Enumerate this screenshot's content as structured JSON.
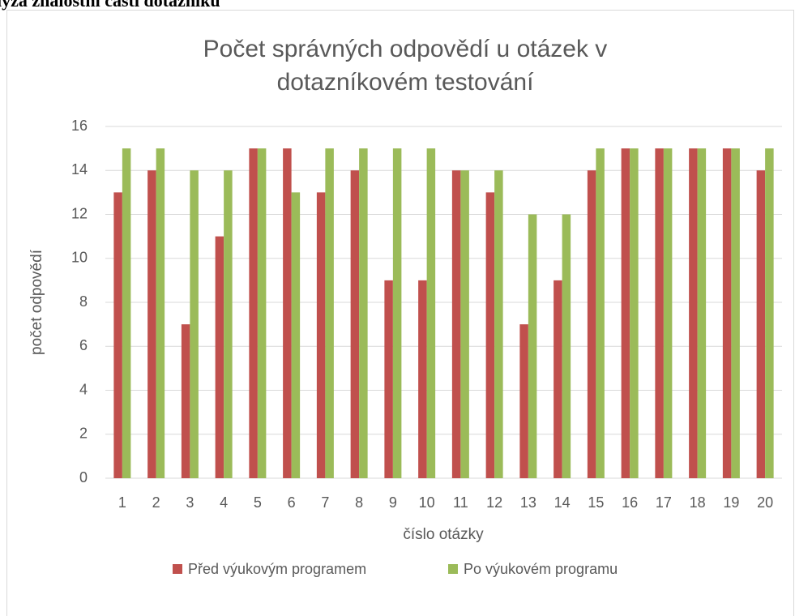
{
  "heading": "lýza znalostní části dotazníku",
  "chart_data": {
    "type": "bar",
    "title": [
      "Počet správných odpovědí u otázek v",
      "dotazníkovém testování"
    ],
    "x_label": "číslo otázky",
    "y_label": "počet odpovědí",
    "categories": [
      "1",
      "2",
      "3",
      "4",
      "5",
      "6",
      "7",
      "8",
      "9",
      "10",
      "11",
      "12",
      "13",
      "14",
      "15",
      "16",
      "17",
      "18",
      "19",
      "20"
    ],
    "series": [
      {
        "name": "Před výukovým programem",
        "color": "#c0504d",
        "values": [
          13,
          14,
          7,
          11,
          15,
          15,
          13,
          14,
          9,
          9,
          14,
          13,
          7,
          9,
          14,
          15,
          15,
          15,
          15,
          14
        ]
      },
      {
        "name": "Po výukovém programu",
        "color": "#9bbb59",
        "values": [
          15,
          15,
          14,
          14,
          15,
          13,
          15,
          15,
          15,
          15,
          14,
          14,
          12,
          12,
          15,
          15,
          15,
          15,
          15,
          15
        ]
      }
    ],
    "ylim": [
      0,
      16
    ],
    "yticks": [
      0,
      2,
      4,
      6,
      8,
      10,
      12,
      14,
      16
    ],
    "grid": true,
    "legend": "bottom"
  }
}
